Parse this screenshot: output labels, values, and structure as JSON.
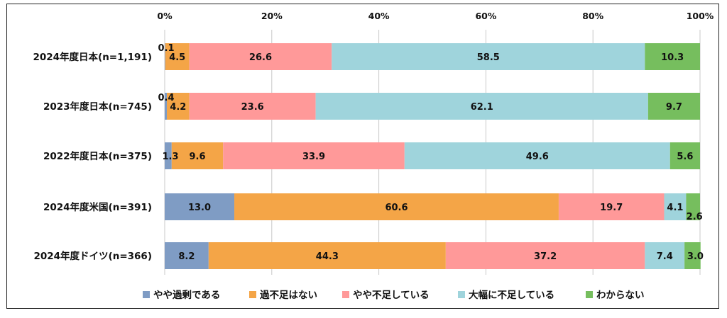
{
  "chart_data": {
    "type": "bar",
    "orientation": "horizontal",
    "stacked": true,
    "xlim": [
      0,
      100
    ],
    "x_ticks": [
      "0%",
      "20%",
      "40%",
      "60%",
      "80%",
      "100%"
    ],
    "categories": [
      "2024年度日本(n=1,191)",
      "2023年度日本(n=745)",
      "2022年度日本(n=375)",
      "2024年度米国(n=391)",
      "2024年度ドイツ(n=366)"
    ],
    "series": [
      {
        "name": "やや過剰である",
        "color": "#7f9cc4",
        "values": [
          0.1,
          0.4,
          1.3,
          13.0,
          8.2
        ],
        "labels": [
          "0.1",
          "0.4",
          "1.3",
          "13.0",
          "8.2"
        ]
      },
      {
        "name": "過不足はない",
        "color": "#f4a547",
        "values": [
          4.5,
          4.2,
          9.6,
          60.6,
          44.3
        ],
        "labels": [
          "4.5",
          "4.2",
          "9.6",
          "60.6",
          "44.3"
        ]
      },
      {
        "name": "やや不足している",
        "color": "#ff9999",
        "values": [
          26.6,
          23.6,
          33.9,
          19.7,
          37.2
        ],
        "labels": [
          "26.6",
          "23.6",
          "33.9",
          "19.7",
          "37.2"
        ]
      },
      {
        "name": "大幅に不足している",
        "color": "#9fd4dc",
        "values": [
          58.5,
          62.1,
          49.6,
          4.1,
          7.4
        ],
        "labels": [
          "58.5",
          "62.1",
          "49.6",
          "4.1",
          "7.4"
        ]
      },
      {
        "name": "わからない",
        "color": "#76be5e",
        "values": [
          10.3,
          9.7,
          5.6,
          2.6,
          3.0
        ],
        "labels": [
          "10.3",
          "9.7",
          "5.6",
          "2.6",
          "3.0"
        ]
      }
    ],
    "grid": true,
    "legend": "bottom"
  }
}
